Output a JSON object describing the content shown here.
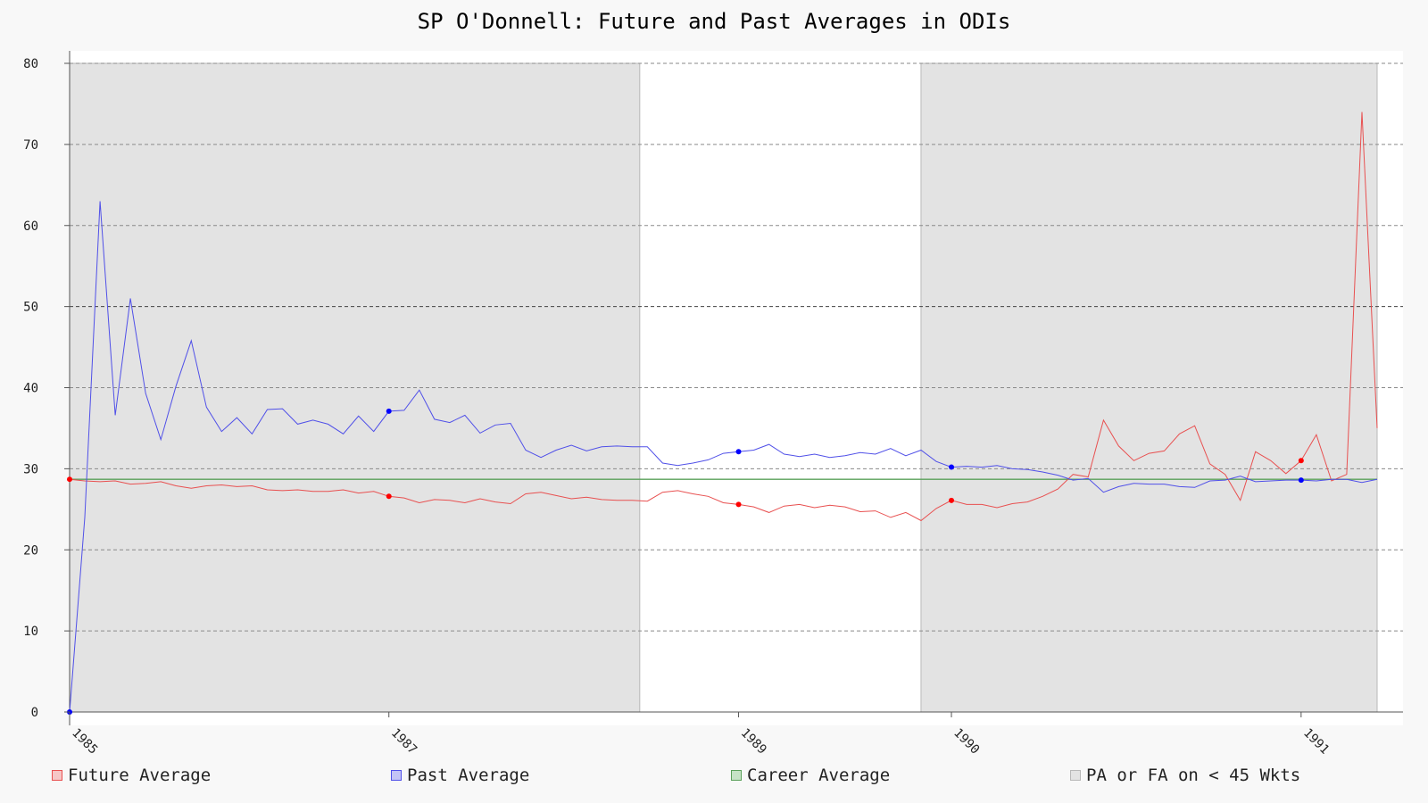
{
  "chart_data": {
    "type": "line",
    "title": "SP O'Donnell: Future and Past Averages in ODIs",
    "xlabel": "",
    "ylabel": "",
    "ylim": [
      0,
      80
    ],
    "yticks": [
      0,
      10,
      20,
      30,
      40,
      50,
      60,
      70,
      80
    ],
    "xtick_labels": [
      {
        "label": "1985",
        "match_index": 0
      },
      {
        "label": "1987",
        "match_index": 21
      },
      {
        "label": "1989",
        "match_index": 44
      },
      {
        "label": "1990",
        "match_index": 58
      },
      {
        "label": "1991",
        "match_index": 81
      }
    ],
    "match_count": 87,
    "grid": true,
    "legend_position": "bottom",
    "career_average": 28.7,
    "shaded_regions": [
      {
        "start_match": 0,
        "end_match": 37.5
      },
      {
        "start_match": 56,
        "end_match": 86
      }
    ],
    "series": [
      {
        "name": "Future Average",
        "color": "#e85050",
        "marker_indices": [
          0,
          21,
          44,
          58,
          81
        ],
        "values": [
          28.7,
          28.5,
          28.4,
          28.5,
          28.1,
          28.2,
          28.4,
          27.9,
          27.6,
          27.9,
          28.0,
          27.8,
          27.9,
          27.4,
          27.3,
          27.4,
          27.2,
          27.2,
          27.4,
          27.0,
          27.2,
          26.6,
          26.4,
          25.8,
          26.2,
          26.1,
          25.8,
          26.3,
          25.9,
          25.7,
          26.9,
          27.1,
          26.7,
          26.3,
          26.5,
          26.2,
          26.1,
          26.1,
          26.0,
          27.1,
          27.3,
          26.9,
          26.6,
          25.8,
          25.6,
          25.3,
          24.6,
          25.4,
          25.6,
          25.2,
          25.5,
          25.3,
          24.7,
          24.8,
          24.0,
          24.6,
          23.6,
          25.1,
          26.1,
          25.6,
          25.6,
          25.2,
          25.7,
          25.9,
          26.6,
          27.5,
          29.3,
          29.0,
          36.0,
          32.8,
          31.0,
          31.9,
          32.2,
          34.3,
          35.3,
          30.6,
          29.3,
          26.1,
          32.1,
          31.0,
          29.4,
          31.0,
          34.2,
          28.5,
          29.3,
          74.0,
          35.0
        ]
      },
      {
        "name": "Past Average",
        "color": "#5050e8",
        "marker_indices": [
          0,
          21,
          44,
          58,
          81
        ],
        "values": [
          0.0,
          24.0,
          63.0,
          36.6,
          51.0,
          39.3,
          33.6,
          40.2,
          45.8,
          37.6,
          34.6,
          36.3,
          34.3,
          37.3,
          37.4,
          35.5,
          36.0,
          35.5,
          34.3,
          36.5,
          34.6,
          37.1,
          37.2,
          39.7,
          36.1,
          35.7,
          36.6,
          34.4,
          35.4,
          35.6,
          32.3,
          31.4,
          32.3,
          32.9,
          32.2,
          32.7,
          32.8,
          32.7,
          32.7,
          30.7,
          30.4,
          30.7,
          31.1,
          31.9,
          32.1,
          32.3,
          33.0,
          31.8,
          31.5,
          31.8,
          31.4,
          31.6,
          32.0,
          31.8,
          32.5,
          31.6,
          32.3,
          30.9,
          30.2,
          30.3,
          30.2,
          30.4,
          30.0,
          29.9,
          29.6,
          29.2,
          28.6,
          28.8,
          27.1,
          27.8,
          28.2,
          28.1,
          28.1,
          27.8,
          27.7,
          28.5,
          28.6,
          29.1,
          28.4,
          28.5,
          28.6,
          28.6,
          28.5,
          28.7,
          28.7,
          28.3,
          28.7
        ]
      },
      {
        "name": "Career Average",
        "color": "#5aa05a"
      }
    ],
    "shade_legend": "PA or FA on < 45 Wkts",
    "colors": {
      "future": "#e85050",
      "past": "#5050e8",
      "career": "#5aa05a",
      "shade": "#e3e3e3",
      "shade_stroke": "#b8b8b8"
    }
  }
}
